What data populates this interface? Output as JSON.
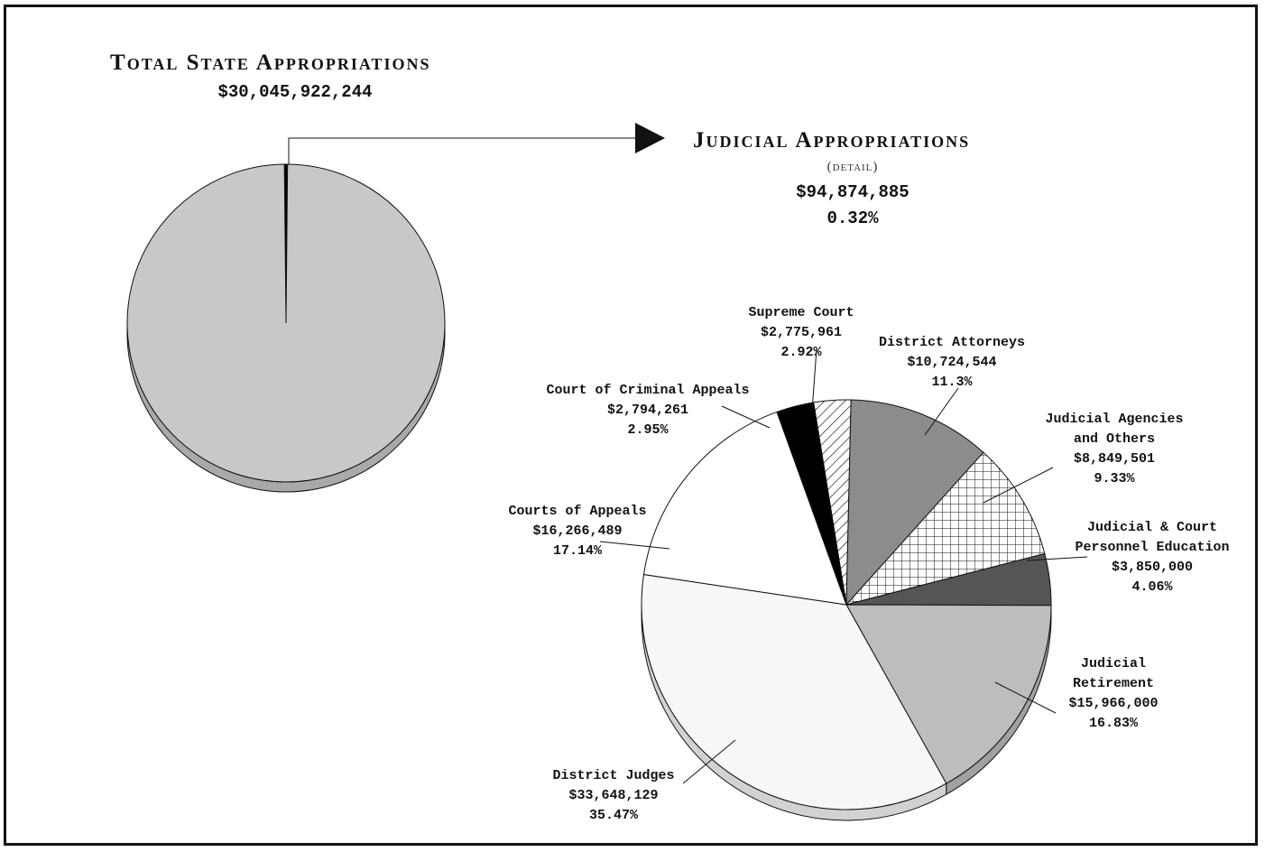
{
  "chart_data": [
    {
      "type": "pie",
      "title": "Total State Appropriations",
      "total_label": "$30,045,922,244",
      "slices": [
        {
          "name": "Judicial Appropriations",
          "value": 94874885,
          "percent": 0.32,
          "color": "#000000"
        },
        {
          "name": "",
          "value": 29951047359,
          "percent": 99.68,
          "color": "#c8c8c8"
        }
      ]
    },
    {
      "type": "pie",
      "title": "Judicial Appropriations",
      "subtitle": "(detail)",
      "total_label": "$94,874,885",
      "percent_label": "0.32%",
      "slices": [
        {
          "name": "Supreme Court",
          "value_label": "$2,775,961",
          "pct_label": "2.92%",
          "percent": 2.92,
          "fill": "hatch",
          "color": "#ffffff"
        },
        {
          "name": "District Attorneys",
          "value_label": "$10,724,544",
          "pct_label": "11.3%",
          "percent": 11.3,
          "fill": "solid",
          "color": "#8c8c8c"
        },
        {
          "name_lines": [
            "Judicial Agencies",
            "and Others"
          ],
          "value_label": "$8,849,501",
          "pct_label": "9.33%",
          "percent": 9.33,
          "fill": "cross",
          "color": "#ffffff"
        },
        {
          "name_lines": [
            "Judicial & Court",
            "Personnel Education"
          ],
          "value_label": "$3,850,000",
          "pct_label": "4.06%",
          "percent": 4.06,
          "fill": "solid",
          "color": "#555555"
        },
        {
          "name_lines": [
            "Judicial",
            "Retirement"
          ],
          "value_label": "$15,966,000",
          "pct_label": "16.83%",
          "percent": 16.83,
          "fill": "solid",
          "color": "#bdbdbd"
        },
        {
          "name": "District Judges",
          "value_label": "$33,648,129",
          "pct_label": "35.47%",
          "percent": 35.47,
          "fill": "solid",
          "color": "#f7f7f7"
        },
        {
          "name": "Courts of Appeals",
          "value_label": "$16,266,489",
          "pct_label": "17.14%",
          "percent": 17.14,
          "fill": "solid",
          "color": "#ffffff"
        },
        {
          "name": "Court of Criminal Appeals",
          "value_label": "$2,794,261",
          "pct_label": "2.95%",
          "percent": 2.95,
          "fill": "solid",
          "color": "#000000"
        }
      ]
    }
  ]
}
